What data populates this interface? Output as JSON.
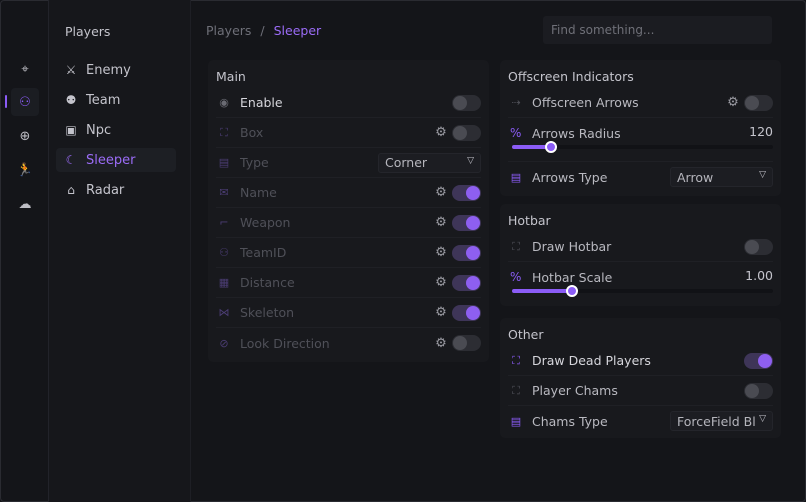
{
  "colors": {
    "accent": "#8b5cf6",
    "background": "#141519",
    "panel": "#18191d"
  },
  "rail": [
    {
      "icon": "crosshair-icon",
      "glyph": "⌖"
    },
    {
      "icon": "players-icon",
      "glyph": "⚇",
      "active": true
    },
    {
      "icon": "globe-icon",
      "glyph": "⊕"
    },
    {
      "icon": "running-icon",
      "glyph": "🏃"
    },
    {
      "icon": "cloud-icon",
      "glyph": "☁"
    }
  ],
  "sidebar": {
    "title": "Players",
    "items": [
      {
        "label": "Enemy",
        "icon": "enemy-icon",
        "glyph": "⚔"
      },
      {
        "label": "Team",
        "icon": "team-icon",
        "glyph": "⚉"
      },
      {
        "label": "Npc",
        "icon": "robot-icon",
        "glyph": "▣"
      },
      {
        "label": "Sleeper",
        "icon": "moon-icon",
        "glyph": "☾",
        "active": true
      },
      {
        "label": "Radar",
        "icon": "house-radar-icon",
        "glyph": "⌂"
      }
    ]
  },
  "breadcrumb": {
    "parent": "Players",
    "separator": "/",
    "current": "Sleeper"
  },
  "search": {
    "placeholder": "Find something...",
    "value": ""
  },
  "main": {
    "title": "Main",
    "rows": [
      {
        "label": "Enable",
        "icon": "toggle-icon",
        "state": "on-label",
        "gear": false,
        "toggle": false
      },
      {
        "label": "Box",
        "icon": "box-icon",
        "state": "dim",
        "gear": true,
        "toggle": false
      },
      {
        "label": "Type",
        "icon": "type-icon",
        "state": "dim",
        "select": "Corner"
      },
      {
        "label": "Name",
        "icon": "mail-icon",
        "state": "dim",
        "gear": true,
        "toggle": true
      },
      {
        "label": "Weapon",
        "icon": "gun-icon",
        "state": "dim",
        "gear": true,
        "toggle": true
      },
      {
        "label": "TeamID",
        "icon": "team-icon",
        "state": "dim",
        "gear": true,
        "toggle": true
      },
      {
        "label": "Distance",
        "icon": "distance-icon",
        "state": "dim",
        "gear": true,
        "toggle": true
      },
      {
        "label": "Skeleton",
        "icon": "skeleton-icon",
        "state": "dim",
        "gear": true,
        "toggle": true
      },
      {
        "label": "Look Direction",
        "icon": "eye-off-icon",
        "state": "dim",
        "gear": true,
        "toggle": false
      }
    ]
  },
  "offscreen": {
    "title": "Offscreen Indicators",
    "arrows": {
      "label": "Offscreen Arrows",
      "toggle": false
    },
    "radius": {
      "label": "Arrows Radius",
      "value": "120",
      "percent": 15
    },
    "type": {
      "label": "Arrows Type",
      "select": "Arrow"
    }
  },
  "hotbar": {
    "title": "Hotbar",
    "draw": {
      "label": "Draw Hotbar",
      "toggle": false
    },
    "scale": {
      "label": "Hotbar Scale",
      "value": "1.00",
      "percent": 23
    }
  },
  "other": {
    "title": "Other",
    "dead": {
      "label": "Draw Dead Players",
      "toggle": true
    },
    "chams": {
      "label": "Player Chams",
      "toggle": false
    },
    "chams_type": {
      "label": "Chams Type",
      "select": "ForceField Bl"
    }
  }
}
